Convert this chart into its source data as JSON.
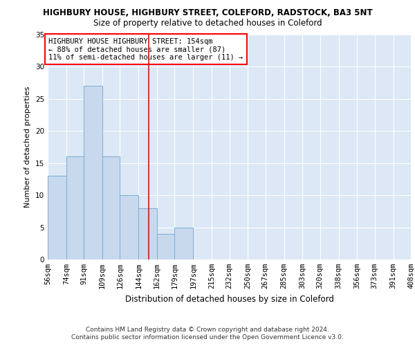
{
  "title1": "HIGHBURY HOUSE, HIGHBURY STREET, COLEFORD, RADSTOCK, BA3 5NT",
  "title2": "Size of property relative to detached houses in Coleford",
  "xlabel": "Distribution of detached houses by size in Coleford",
  "ylabel": "Number of detached properties",
  "bin_edges": [
    56,
    74,
    91,
    109,
    126,
    144,
    162,
    179,
    197,
    215,
    232,
    250,
    267,
    285,
    303,
    320,
    338,
    356,
    373,
    391,
    408
  ],
  "bar_values": [
    13,
    16,
    27,
    16,
    10,
    8,
    4,
    5,
    0,
    0,
    0,
    0,
    0,
    0,
    0,
    0,
    0,
    0,
    0,
    0
  ],
  "bar_color": "#c8d8ed",
  "bar_edge_color": "#7aadd4",
  "red_line_x": 154,
  "ylim": [
    0,
    35
  ],
  "annotation_text": "HIGHBURY HOUSE HIGHBURY STREET: 154sqm\n← 88% of detached houses are smaller (87)\n11% of semi-detached houses are larger (11) →",
  "footnote1": "Contains HM Land Registry data © Crown copyright and database right 2024.",
  "footnote2": "Contains public sector information licensed under the Open Government Licence v3.0.",
  "background_color": "#dce8f5",
  "grid_color": "#ffffff",
  "title1_fontsize": 8.5,
  "title2_fontsize": 8.5,
  "xlabel_fontsize": 8.5,
  "ylabel_fontsize": 8,
  "tick_fontsize": 7.5,
  "annotation_fontsize": 7.5,
  "footnote_fontsize": 6.5
}
